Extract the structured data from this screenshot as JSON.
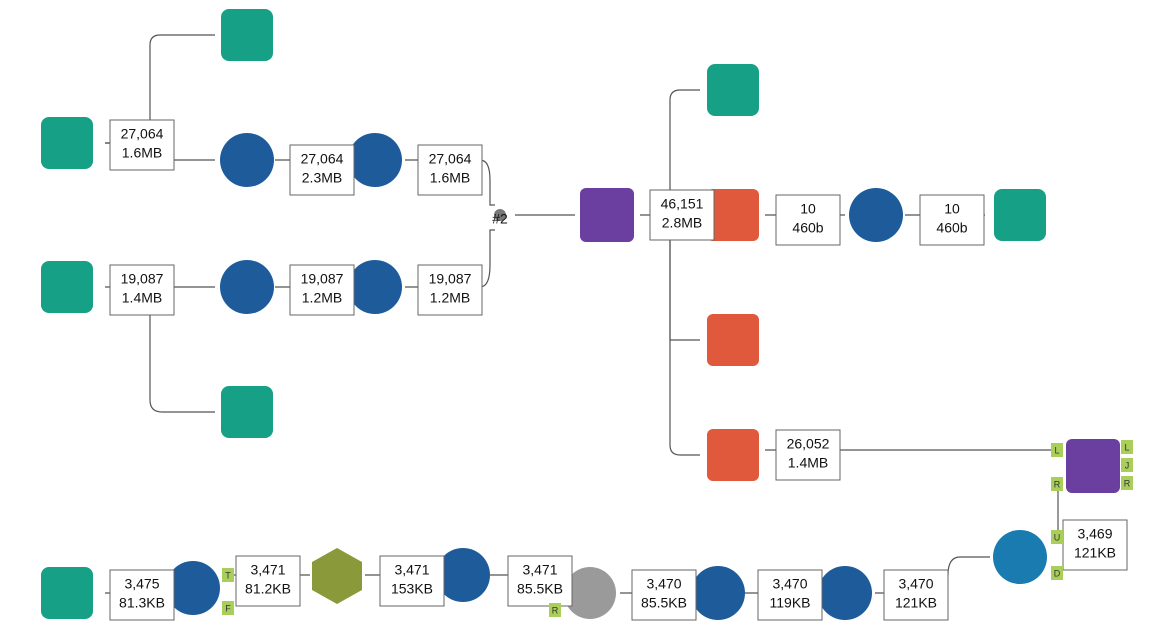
{
  "labels": [
    {
      "count": "27,064",
      "size": "1.6MB"
    },
    {
      "count": "27,064",
      "size": "2.3MB"
    },
    {
      "count": "27,064",
      "size": "1.6MB"
    },
    {
      "count": "19,087",
      "size": "1.4MB"
    },
    {
      "count": "19,087",
      "size": "1.2MB"
    },
    {
      "count": "19,087",
      "size": "1.2MB"
    },
    {
      "count": "46,151",
      "size": "2.8MB"
    },
    {
      "count": "10",
      "size": "460b"
    },
    {
      "count": "10",
      "size": "460b"
    },
    {
      "count": "26,052",
      "size": "1.4MB"
    },
    {
      "count": "3,469",
      "size": "121KB"
    },
    {
      "count": "3,475",
      "size": "81.3KB"
    },
    {
      "count": "3,471",
      "size": "81.2KB"
    },
    {
      "count": "3,471",
      "size": "153KB"
    },
    {
      "count": "3,471",
      "size": "85.5KB"
    },
    {
      "count": "3,470",
      "size": "85.5KB"
    },
    {
      "count": "3,470",
      "size": "119KB"
    },
    {
      "count": "3,470",
      "size": "121KB"
    }
  ],
  "anchors": [
    "T",
    "F",
    "R",
    "L",
    "L",
    "J",
    "R",
    "R",
    "U",
    "D"
  ],
  "union_label": "#2"
}
